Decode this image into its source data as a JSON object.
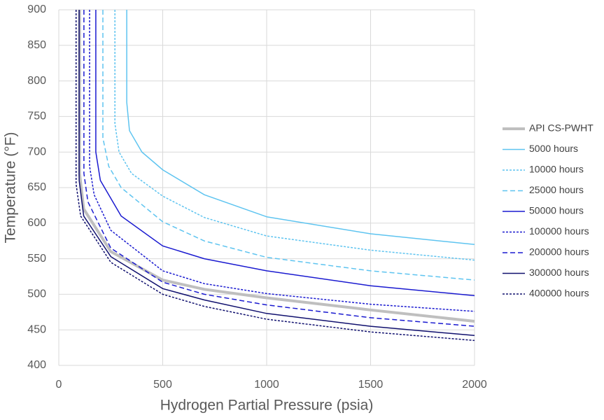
{
  "chart_data": {
    "type": "line",
    "x_label": "Hydrogen Partial Pressure (psia)",
    "y_label": "Temperature (°F)",
    "xlim": [
      0,
      2000
    ],
    "xticks": [
      0,
      500,
      1000,
      1500,
      2000
    ],
    "ylim": [
      400,
      900
    ],
    "yticks": [
      400,
      450,
      500,
      550,
      600,
      650,
      700,
      750,
      800,
      850,
      900
    ],
    "grid": true,
    "legend": "right",
    "series": [
      {
        "name": "API CS-PWHT",
        "color": "#bfbfbf",
        "dash": "solid",
        "width": 4,
        "x": [
          100,
          100,
          120,
          250,
          500,
          700,
          1000,
          1500,
          2000
        ],
        "values": [
          900,
          670,
          620,
          560,
          520,
          507,
          495,
          478,
          462
        ]
      },
      {
        "name": "5000 hours",
        "color": "#5ec4f0",
        "dash": "solid",
        "width": 1.5,
        "x": [
          327,
          327,
          340,
          400,
          500,
          700,
          1000,
          1500,
          2000
        ],
        "values": [
          900,
          770,
          730,
          700,
          675,
          640,
          609,
          585,
          570
        ]
      },
      {
        "name": "10000 hours",
        "color": "#5ec4f0",
        "dash": "dotted",
        "width": 1.5,
        "x": [
          270,
          270,
          290,
          350,
          500,
          700,
          1000,
          1500,
          2000
        ],
        "values": [
          900,
          740,
          700,
          670,
          638,
          608,
          582,
          562,
          548
        ]
      },
      {
        "name": "25000 hours",
        "color": "#5ec4f0",
        "dash": "dashed",
        "width": 1.5,
        "x": [
          212,
          212,
          240,
          300,
          500,
          700,
          1000,
          1500,
          2000
        ],
        "values": [
          900,
          720,
          680,
          650,
          602,
          575,
          552,
          533,
          520
        ]
      },
      {
        "name": "50000 hours",
        "color": "#1a1ad0",
        "dash": "solid",
        "width": 1.5,
        "x": [
          178,
          178,
          200,
          300,
          500,
          700,
          1000,
          1500,
          2000
        ],
        "values": [
          900,
          700,
          660,
          610,
          568,
          550,
          533,
          512,
          498
        ]
      },
      {
        "name": "100000 hours",
        "color": "#1a1ad0",
        "dash": "dotted",
        "width": 1.5,
        "x": [
          148,
          148,
          170,
          250,
          500,
          700,
          1000,
          1500,
          2000
        ],
        "values": [
          900,
          680,
          640,
          590,
          533,
          515,
          501,
          486,
          476
        ]
      },
      {
        "name": "200000 hours",
        "color": "#1a1ad0",
        "dash": "dashed",
        "width": 1.5,
        "x": [
          121,
          121,
          140,
          250,
          500,
          700,
          1000,
          1500,
          2000
        ],
        "values": [
          900,
          670,
          630,
          565,
          517,
          500,
          485,
          467,
          455
        ]
      },
      {
        "name": "300000 hours",
        "color": "#10106e",
        "dash": "solid",
        "width": 1.5,
        "x": [
          98,
          98,
          120,
          250,
          500,
          700,
          1000,
          1500,
          2000
        ],
        "values": [
          900,
          660,
          610,
          553,
          508,
          492,
          473,
          455,
          442
        ]
      },
      {
        "name": "400000 hours",
        "color": "#10106e",
        "dash": "dotted",
        "width": 1.5,
        "x": [
          83,
          83,
          105,
          250,
          500,
          700,
          1000,
          1500,
          2000
        ],
        "values": [
          900,
          655,
          610,
          545,
          500,
          483,
          465,
          447,
          435
        ]
      }
    ]
  }
}
